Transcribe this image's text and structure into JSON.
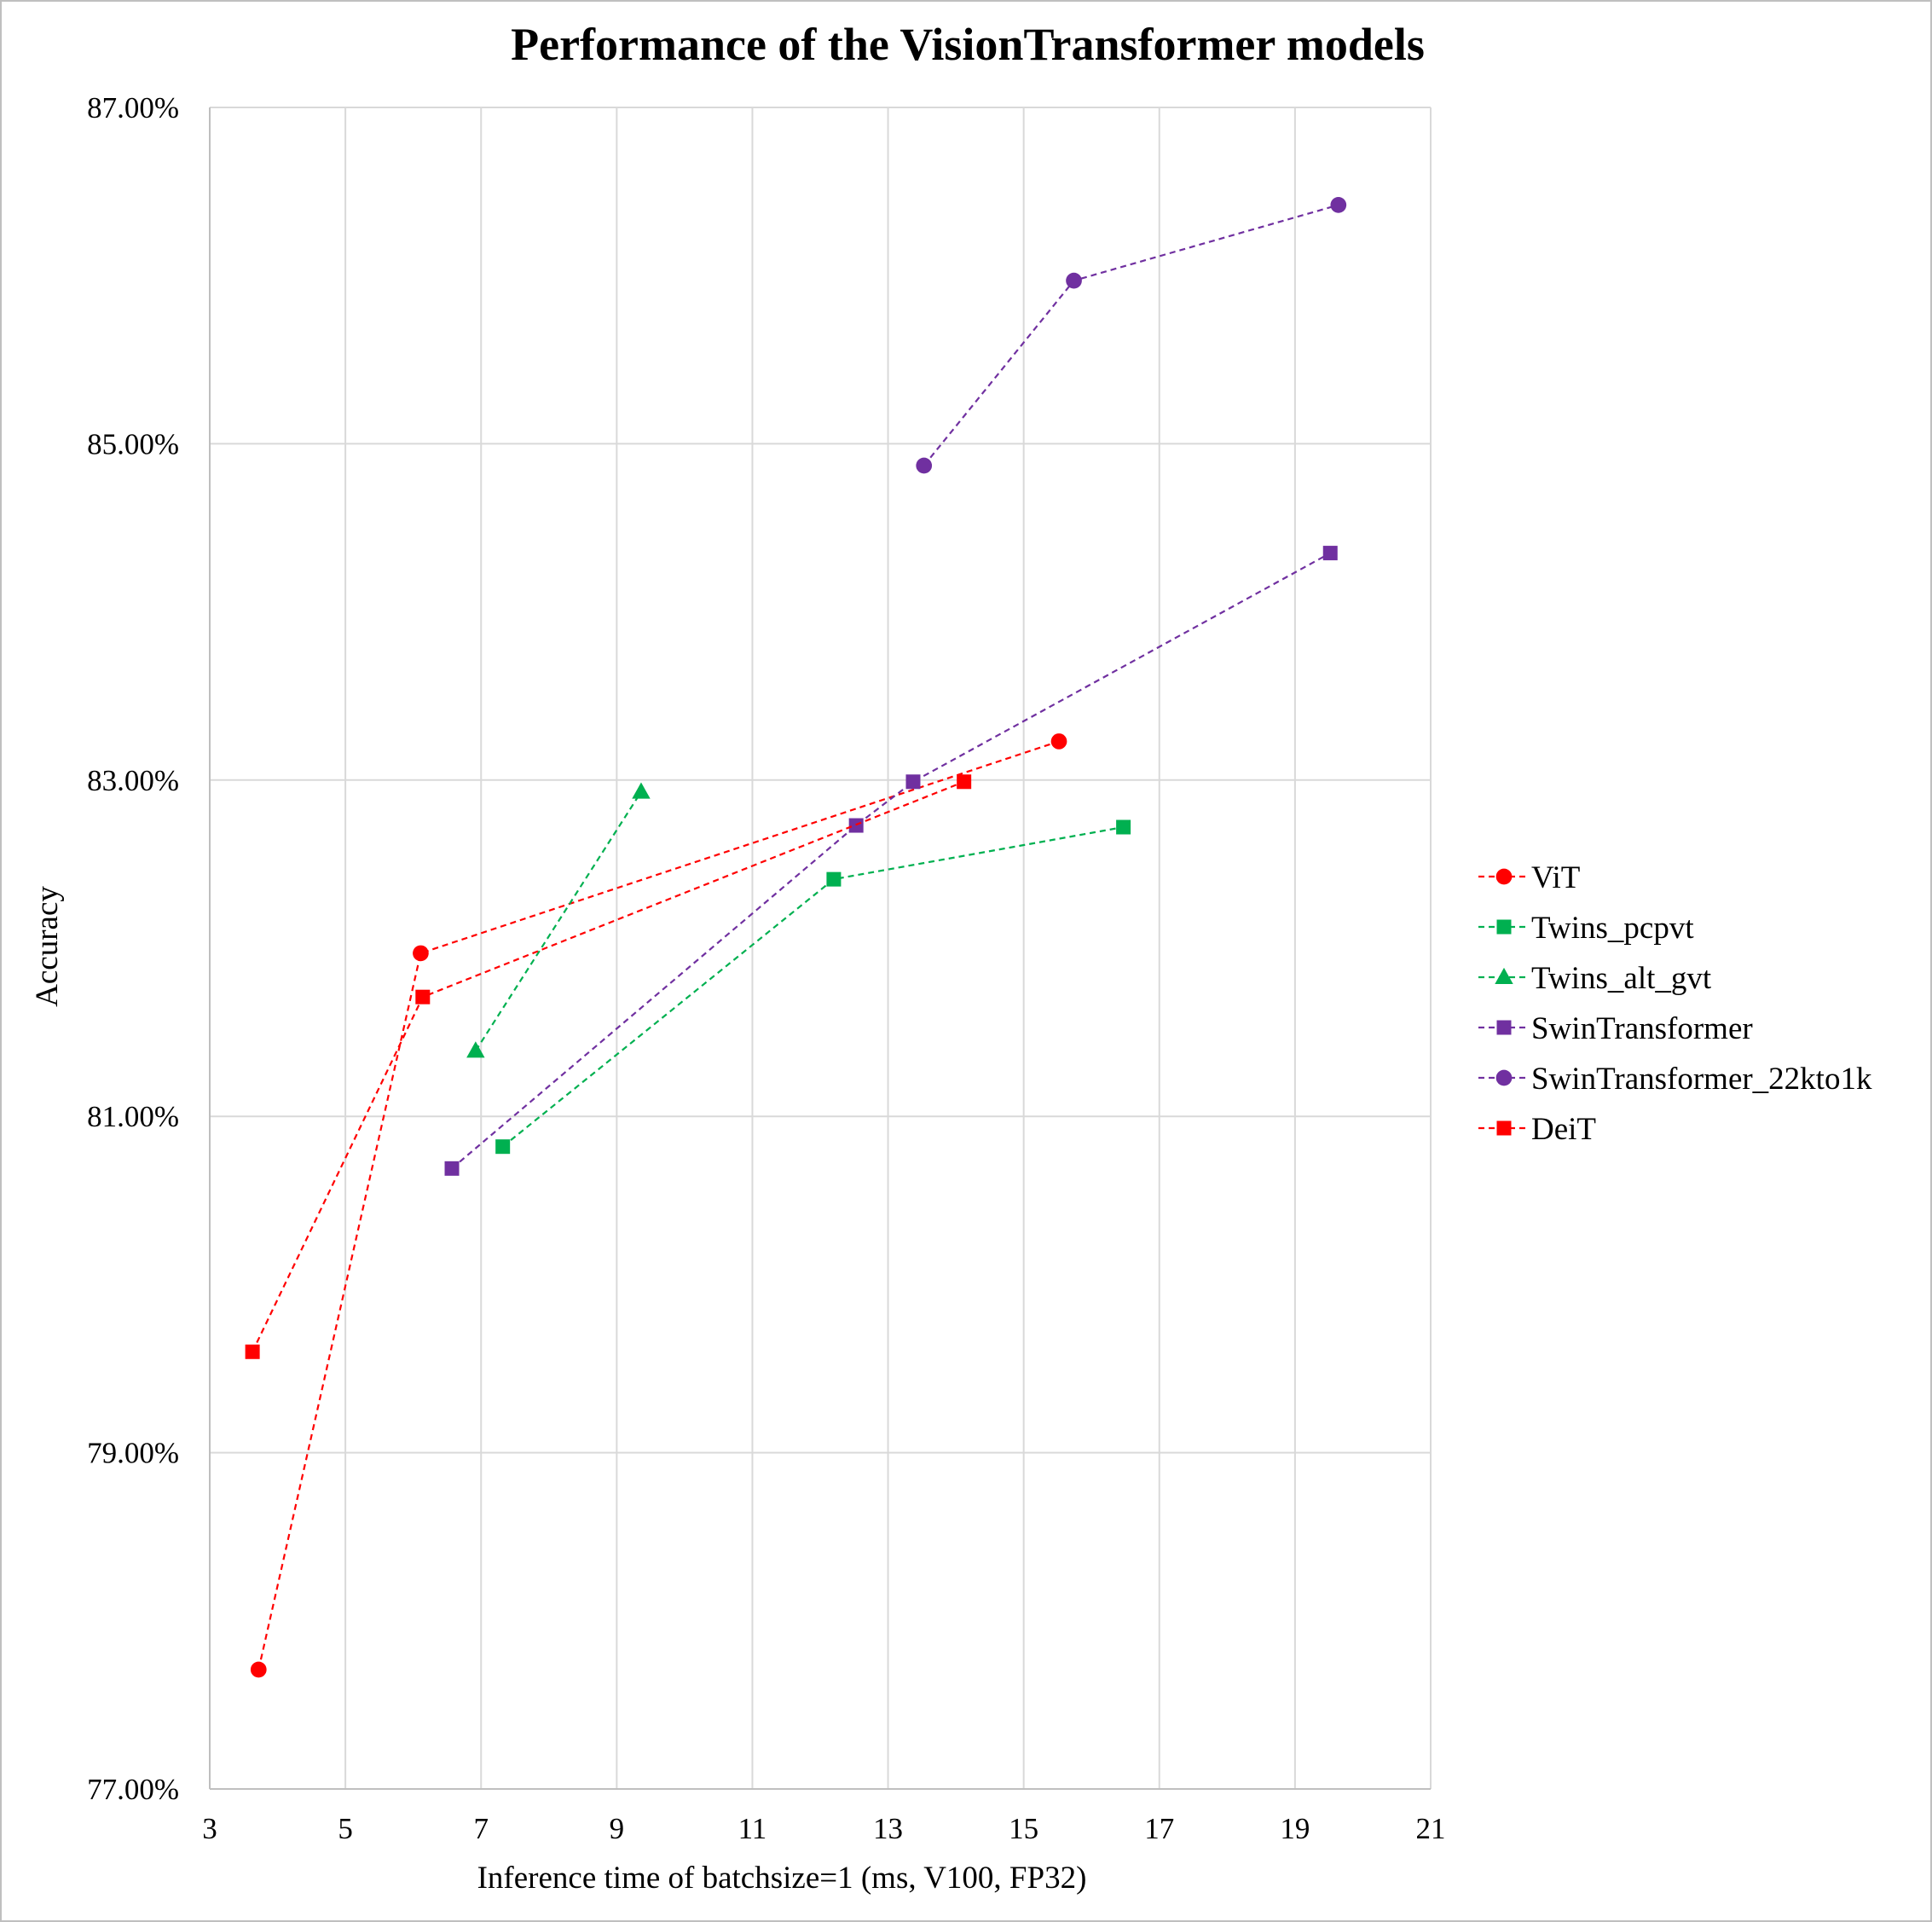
{
  "chart_data": {
    "type": "scatter",
    "title": "Performance of the VisionTransformer models",
    "xlabel": "Inference time of batchsize=1 (ms, V100, FP32)",
    "ylabel": "Accuracy",
    "xlim": [
      3,
      21
    ],
    "ylim": [
      77,
      87
    ],
    "x_ticks": [
      "3",
      "5",
      "7",
      "9",
      "11",
      "13",
      "15",
      "17",
      "19",
      "21"
    ],
    "y_ticks": [
      "77.00%",
      "79.00%",
      "81.00%",
      "83.00%",
      "85.00%",
      "87.00%"
    ],
    "grid": true,
    "legend_position": "right",
    "series": [
      {
        "name": "ViT",
        "color": "#ff0000",
        "marker": "circle",
        "points": [
          [
            3.72,
            77.71
          ],
          [
            6.11,
            81.97
          ],
          [
            15.52,
            83.23
          ]
        ]
      },
      {
        "name": "Twins_pcpvt",
        "color": "#00b050",
        "marker": "square",
        "points": [
          [
            7.32,
            80.82
          ],
          [
            12.2,
            82.41
          ],
          [
            16.47,
            82.72
          ]
        ]
      },
      {
        "name": "Twins_alt_gvt",
        "color": "#00b050",
        "marker": "triangle",
        "points": [
          [
            6.92,
            81.39
          ],
          [
            9.36,
            82.93
          ]
        ]
      },
      {
        "name": "SwinTransformer",
        "color": "#7030a0",
        "marker": "square",
        "points": [
          [
            6.57,
            80.69
          ],
          [
            12.53,
            82.73
          ],
          [
            13.37,
            82.99
          ],
          [
            19.52,
            84.35
          ]
        ]
      },
      {
        "name": "SwinTransformer_22kto1k",
        "color": "#7030a0",
        "marker": "circle",
        "points": [
          [
            13.53,
            84.87
          ],
          [
            15.74,
            85.97
          ],
          [
            19.64,
            86.42
          ]
        ]
      },
      {
        "name": "DeiT",
        "color": "#ff0000",
        "marker": "square",
        "points": [
          [
            3.63,
            79.6
          ],
          [
            6.14,
            81.71
          ],
          [
            14.12,
            82.99
          ]
        ]
      }
    ]
  }
}
